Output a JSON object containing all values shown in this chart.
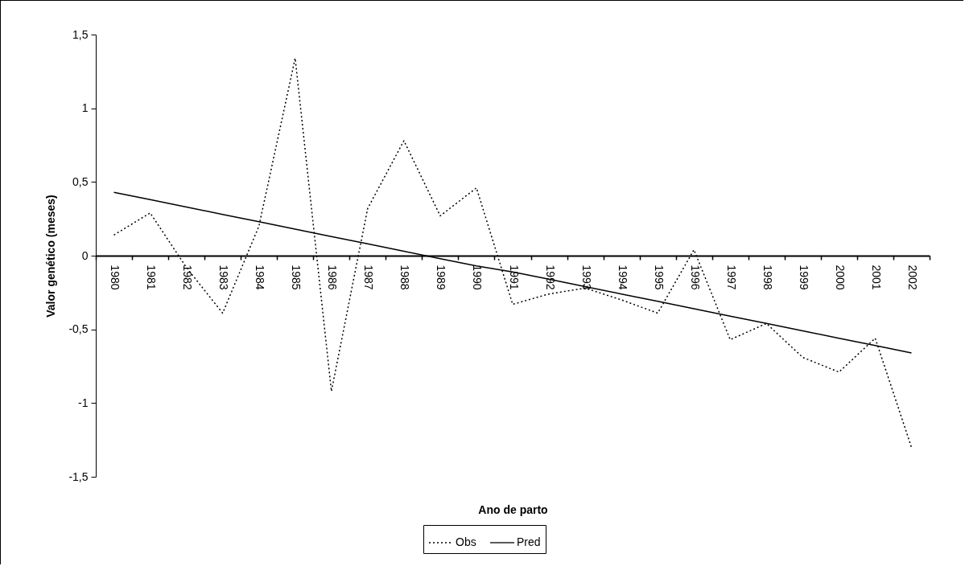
{
  "chart_data": {
    "type": "line",
    "xlabel": "Ano de parto",
    "ylabel": "Valor genético (meses)",
    "categories": [
      "1980",
      "1981",
      "1982",
      "1983",
      "1984",
      "1985",
      "1986",
      "1987",
      "1988",
      "1989",
      "1990",
      "1991",
      "1992",
      "1993",
      "1994",
      "1995",
      "1996",
      "1997",
      "1998",
      "1999",
      "2000",
      "2001",
      "2002"
    ],
    "series": [
      {
        "name": "Obs",
        "color": "#000000",
        "line_style": "dotted",
        "values": [
          0.14,
          0.29,
          -0.08,
          -0.39,
          0.2,
          1.34,
          -0.92,
          0.32,
          0.78,
          0.27,
          0.46,
          -0.33,
          -0.26,
          -0.22,
          -0.3,
          -0.39,
          0.04,
          -0.57,
          -0.46,
          -0.69,
          -0.79,
          -0.56,
          -1.3
        ]
      },
      {
        "name": "Pred",
        "color": "#000000",
        "line_style": "solid",
        "values": [
          0.43,
          0.38,
          0.33,
          0.28,
          0.23,
          0.18,
          0.13,
          0.08,
          0.03,
          -0.02,
          -0.07,
          -0.11,
          -0.16,
          -0.21,
          -0.26,
          -0.31,
          -0.36,
          -0.41,
          -0.46,
          -0.51,
          -0.56,
          -0.61,
          -0.66
        ]
      }
    ],
    "ylim": [
      -1.5,
      1.5
    ],
    "yticks": [
      {
        "value": 1.5,
        "label": "1,5"
      },
      1,
      {
        "value": 0.5,
        "label": "0,5"
      },
      0,
      {
        "value": -0.5,
        "label": "-0,5"
      },
      -1,
      {
        "value": -1.5,
        "label": "-1,5"
      }
    ],
    "grid": false,
    "legend": "bottom",
    "marker": "none"
  }
}
